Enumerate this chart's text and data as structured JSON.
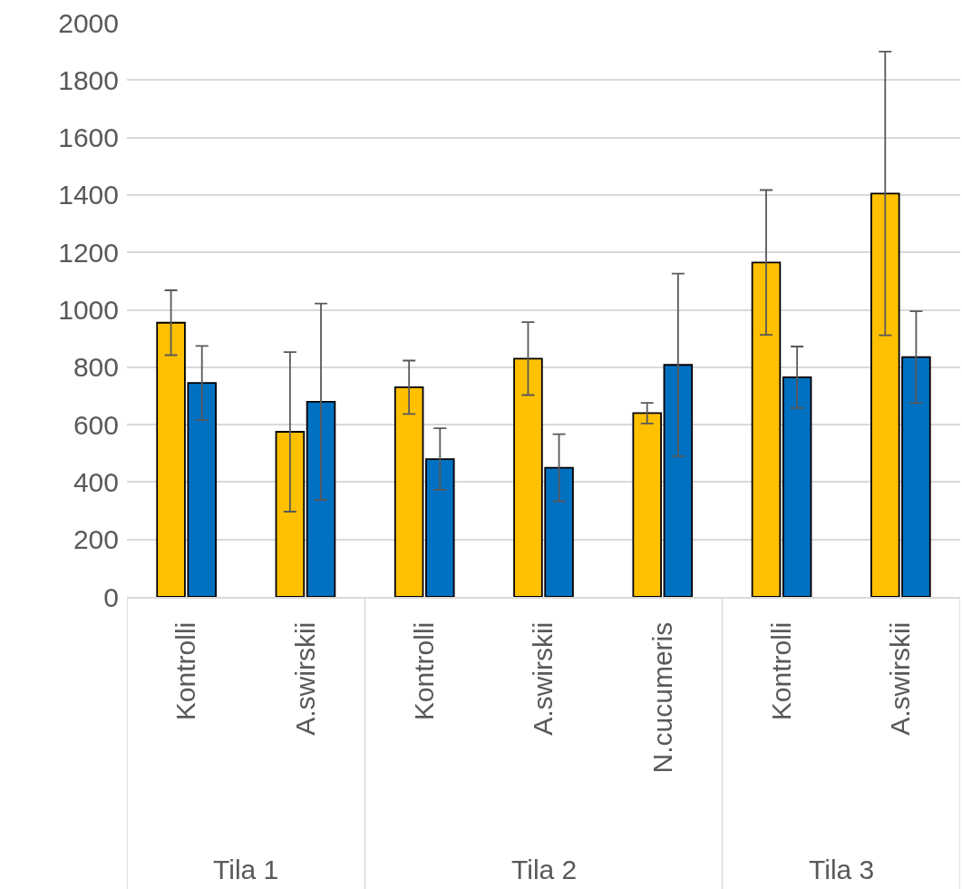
{
  "chart_data": {
    "type": "bar",
    "categories": [
      "Kontrolli",
      "A.swirskii",
      "Kontrolli",
      "A.swirskii",
      "N.cucumeris",
      "Kontrolli",
      "A.swirskii"
    ],
    "series": [
      {
        "color": "#ffc000",
        "values": [
          955,
          575,
          730,
          830,
          640,
          1165,
          1405
        ],
        "errors": [
          113,
          278,
          93,
          127,
          36,
          252,
          494
        ]
      },
      {
        "color": "#0070c0",
        "values": [
          745,
          680,
          480,
          450,
          808,
          765,
          835
        ],
        "errors": [
          129,
          342,
          107,
          117,
          318,
          107,
          160
        ]
      }
    ],
    "annotations": [
      "Tila 1",
      "Tila 2",
      "Tila 3"
    ],
    "ylim": [
      0,
      2000
    ],
    "yticks": [
      0,
      200,
      400,
      600,
      800,
      1000,
      1200,
      1400,
      1600,
      1800,
      2000
    ],
    "grid": "y"
  }
}
